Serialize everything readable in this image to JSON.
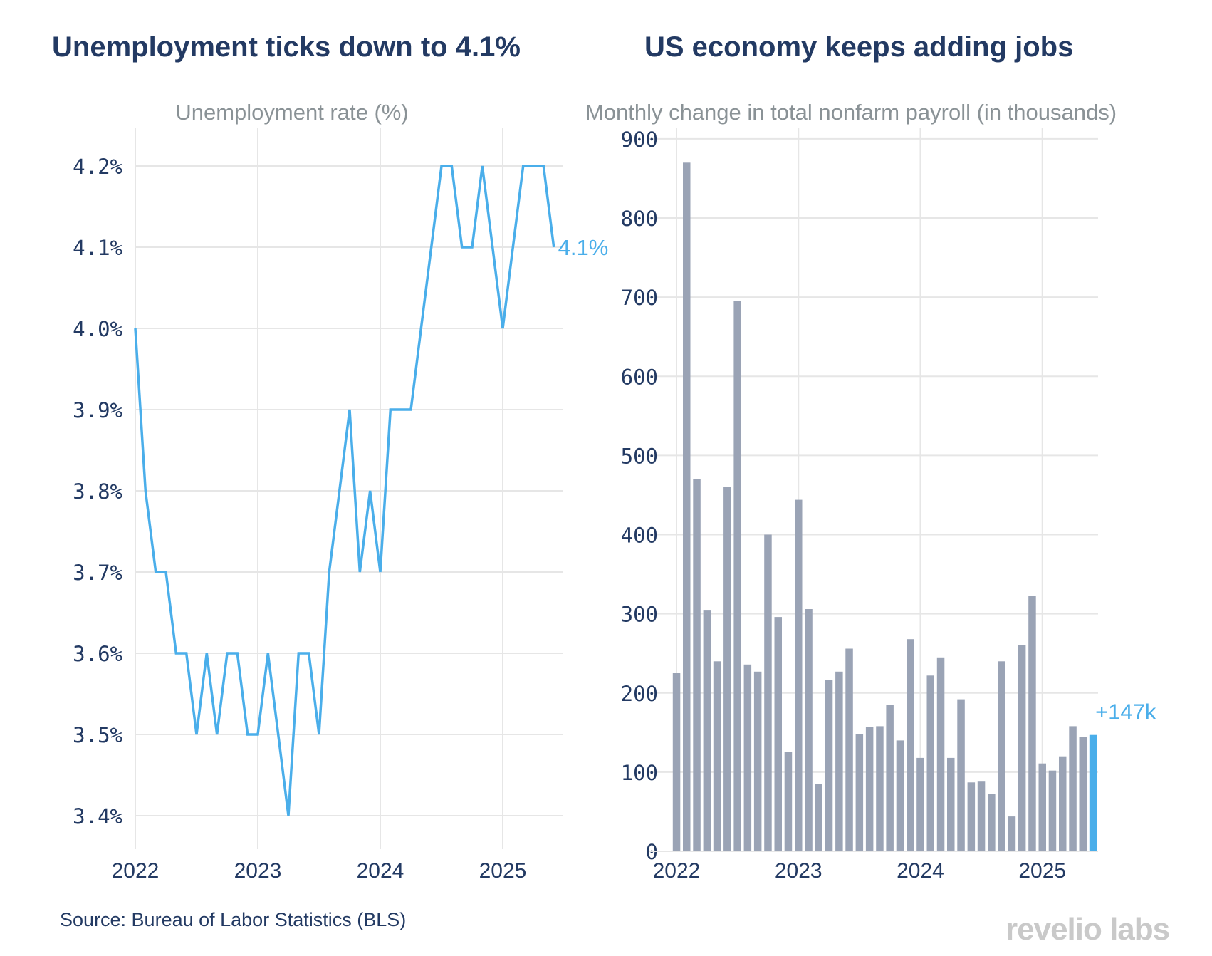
{
  "colors": {
    "line": "#4aaeea",
    "bar": "#9aa3b5",
    "bar_highlight": "#4aaeea",
    "title": "#233a63",
    "subtitle": "#8a9296",
    "tick": "#233a63",
    "grid": "#e6e6e6"
  },
  "source": "Source: Bureau of Labor Statistics (BLS)",
  "logo": "revelio labs",
  "chart_data": [
    {
      "type": "line",
      "title": "Unemployment ticks down to 4.1%",
      "subtitle": "Unemployment rate (%)",
      "x": [
        "2022-01",
        "2022-02",
        "2022-03",
        "2022-04",
        "2022-05",
        "2022-06",
        "2022-07",
        "2022-08",
        "2022-09",
        "2022-10",
        "2022-11",
        "2022-12",
        "2023-01",
        "2023-02",
        "2023-03",
        "2023-04",
        "2023-05",
        "2023-06",
        "2023-07",
        "2023-08",
        "2023-09",
        "2023-10",
        "2023-11",
        "2023-12",
        "2024-01",
        "2024-02",
        "2024-03",
        "2024-04",
        "2024-05",
        "2024-06",
        "2024-07",
        "2024-08",
        "2024-09",
        "2024-10",
        "2024-11",
        "2024-12",
        "2025-01",
        "2025-02",
        "2025-03",
        "2025-04",
        "2025-05",
        "2025-06"
      ],
      "series": [
        {
          "values": [
            4.0,
            3.8,
            3.7,
            3.7,
            3.6,
            3.6,
            3.5,
            3.6,
            3.5,
            3.6,
            3.6,
            3.5,
            3.5,
            3.6,
            3.5,
            3.4,
            3.6,
            3.6,
            3.5,
            3.7,
            3.8,
            3.9,
            3.7,
            3.8,
            3.7,
            3.9,
            3.9,
            3.9,
            4.0,
            4.1,
            4.2,
            4.2,
            4.1,
            4.1,
            4.2,
            4.1,
            4.0,
            4.1,
            4.2,
            4.2,
            4.2,
            4.1
          ]
        }
      ],
      "ylim": [
        3.36,
        4.24
      ],
      "yticks": [
        3.4,
        3.5,
        3.6,
        3.7,
        3.8,
        3.9,
        4.0,
        4.1,
        4.2
      ],
      "ytick_labels": [
        "3.4%",
        "3.5%",
        "3.6%",
        "3.7%",
        "3.8%",
        "3.9%",
        "4.0%",
        "4.1%",
        "4.2%"
      ],
      "xticks": [
        "2022",
        "2023",
        "2024",
        "2025"
      ],
      "end_label": "4.1%",
      "grid": true
    },
    {
      "type": "bar",
      "title": "US economy keeps adding jobs",
      "subtitle": "Monthly change in total nonfarm payroll (in thousands)",
      "categories": [
        "2022-01",
        "2022-02",
        "2022-03",
        "2022-04",
        "2022-05",
        "2022-06",
        "2022-07",
        "2022-08",
        "2022-09",
        "2022-10",
        "2022-11",
        "2022-12",
        "2023-01",
        "2023-02",
        "2023-03",
        "2023-04",
        "2023-05",
        "2023-06",
        "2023-07",
        "2023-08",
        "2023-09",
        "2023-10",
        "2023-11",
        "2023-12",
        "2024-01",
        "2024-02",
        "2024-03",
        "2024-04",
        "2024-05",
        "2024-06",
        "2024-07",
        "2024-08",
        "2024-09",
        "2024-10",
        "2024-11",
        "2024-12",
        "2025-01",
        "2025-02",
        "2025-03",
        "2025-04",
        "2025-05",
        "2025-06"
      ],
      "values": [
        225,
        870,
        470,
        305,
        240,
        460,
        695,
        236,
        227,
        400,
        296,
        126,
        444,
        306,
        85,
        216,
        227,
        256,
        148,
        157,
        158,
        185,
        140,
        268,
        118,
        222,
        245,
        118,
        192,
        87,
        88,
        72,
        240,
        44,
        261,
        323,
        111,
        102,
        120,
        158,
        144,
        147
      ],
      "highlight_index": 41,
      "ylim": [
        0,
        900
      ],
      "yticks": [
        0,
        100,
        200,
        300,
        400,
        500,
        600,
        700,
        800,
        900
      ],
      "xticks": [
        "2022",
        "2023",
        "2024",
        "2025"
      ],
      "end_label": "+147k",
      "grid": true
    }
  ]
}
